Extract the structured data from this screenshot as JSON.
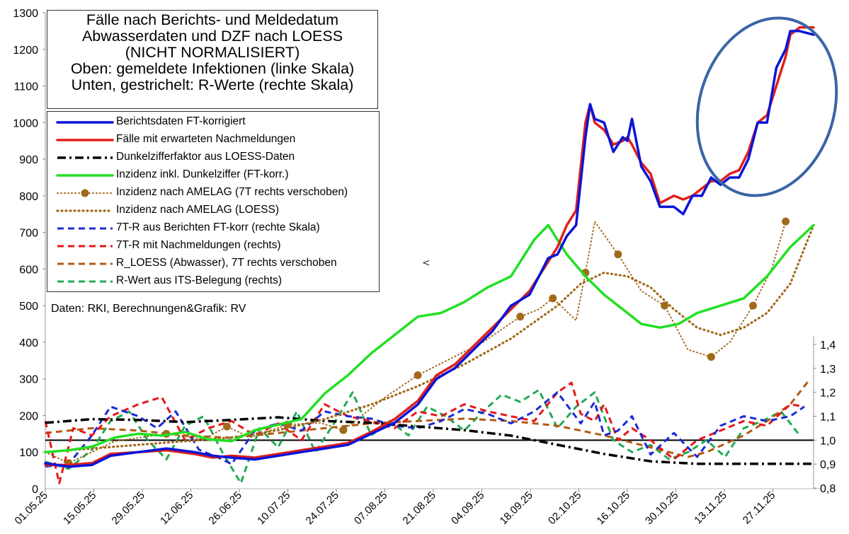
{
  "chart_data": {
    "type": "line",
    "title_lines": [
      "Fälle nach Berichts- und Meldedatum",
      "Abwasserdaten und DZF nach LOESS",
      "(NICHT NORMALISIERT)",
      "Oben: gemeldete Infektionen (linke Skala)",
      "Unten, gestrichelt: R-Werte (rechte Skala)"
    ],
    "source": "Daten: RKI, Berechnungen&Grafik: RV",
    "left_axis": {
      "ylim": [
        0,
        1300
      ],
      "ticks": [
        "0",
        "100",
        "200",
        "300",
        "400",
        "500",
        "600",
        "700",
        "800",
        "900",
        "1000",
        "1100",
        "1200",
        "1300"
      ]
    },
    "right_axis": {
      "ylim": [
        0.8,
        1.4
      ],
      "ticks": [
        "0,8",
        "0,9",
        "1,0",
        "1,1",
        "1,2",
        "1,3",
        "1,4"
      ]
    },
    "x_labels": [
      "01.05.25",
      "15.05.25",
      "29.05.25",
      "12.06.25",
      "26.06.25",
      "10.07.25",
      "24.07.25",
      "07.08.25",
      "21.08.25",
      "04.09.25",
      "18.09.25",
      "02.10.25",
      "16.10.25",
      "30.10.25",
      "13.11.25",
      "27.11.25"
    ],
    "reference_line": 1.0,
    "series": [
      {
        "name": "Berichtsdaten FT-korrigiert",
        "axis": "left",
        "color": "#0a14d8",
        "style": "solid",
        "x": [
          0,
          5,
          10,
          14,
          20,
          26,
          32,
          36,
          40,
          45,
          50,
          55,
          60,
          65,
          70,
          75,
          80,
          84,
          88,
          92,
          96,
          100,
          104,
          108,
          110,
          112,
          114,
          116,
          117,
          118,
          120,
          122,
          124,
          125,
          126,
          128,
          130,
          132,
          135,
          137,
          139,
          141,
          143,
          145,
          147,
          149,
          151,
          153,
          155,
          157,
          159,
          160,
          162,
          165
        ],
        "values": [
          70,
          60,
          65,
          90,
          100,
          110,
          100,
          90,
          85,
          80,
          90,
          100,
          110,
          120,
          150,
          180,
          230,
          300,
          330,
          380,
          430,
          500,
          530,
          630,
          640,
          690,
          720,
          960,
          1050,
          1010,
          1000,
          920,
          960,
          950,
          1010,
          880,
          840,
          770,
          770,
          750,
          800,
          800,
          850,
          830,
          850,
          850,
          900,
          1000,
          1000,
          1150,
          1200,
          1250,
          1250,
          1240
        ]
      },
      {
        "name": "Fälle mit erwarteten Nachmeldungen",
        "axis": "left",
        "color": "#e0201a",
        "style": "solid",
        "x": [
          0,
          5,
          10,
          14,
          20,
          26,
          32,
          36,
          40,
          45,
          50,
          55,
          60,
          65,
          70,
          75,
          80,
          84,
          88,
          92,
          96,
          100,
          104,
          108,
          110,
          112,
          114,
          116,
          117,
          118,
          120,
          122,
          124,
          125,
          126,
          128,
          130,
          132,
          135,
          137,
          139,
          141,
          143,
          145,
          147,
          149,
          151,
          153,
          155,
          157,
          159,
          160,
          162,
          165
        ],
        "values": [
          65,
          65,
          70,
          95,
          100,
          105,
          95,
          85,
          90,
          85,
          95,
          105,
          115,
          125,
          155,
          190,
          240,
          310,
          340,
          390,
          440,
          490,
          540,
          620,
          660,
          720,
          760,
          1000,
          1050,
          1000,
          980,
          940,
          950,
          960,
          940,
          890,
          860,
          780,
          800,
          790,
          800,
          820,
          840,
          840,
          860,
          870,
          920,
          1000,
          1020,
          1100,
          1180,
          1240,
          1260,
          1260
        ]
      },
      {
        "name": "Dunkelzifferfaktor aus LOESS-Daten",
        "axis": "left",
        "color": "#000000",
        "style": "dashdot",
        "x": [
          0,
          10,
          20,
          30,
          40,
          50,
          60,
          70,
          80,
          90,
          100,
          110,
          120,
          130,
          140,
          150,
          160,
          165
        ],
        "values": [
          180,
          190,
          188,
          182,
          188,
          195,
          185,
          180,
          170,
          160,
          145,
          120,
          95,
          75,
          68,
          68,
          68,
          68
        ]
      },
      {
        "name": "Inzidenz inkl. Dunkelziffer (FT-korr.)",
        "axis": "left",
        "color": "#22e022",
        "style": "solid",
        "x": [
          0,
          5,
          10,
          15,
          20,
          25,
          30,
          35,
          40,
          45,
          50,
          55,
          60,
          65,
          70,
          75,
          80,
          85,
          90,
          95,
          100,
          105,
          108,
          112,
          116,
          120,
          124,
          128,
          132,
          136,
          140,
          145,
          150,
          155,
          160,
          165
        ],
        "values": [
          100,
          105,
          115,
          140,
          150,
          145,
          155,
          135,
          130,
          160,
          175,
          190,
          260,
          310,
          370,
          420,
          470,
          480,
          510,
          550,
          580,
          680,
          720,
          640,
          580,
          530,
          490,
          450,
          440,
          450,
          480,
          500,
          520,
          580,
          660,
          720
        ]
      },
      {
        "name": "Inzidenz nach AMELAG (7T rechts verschoben)",
        "axis": "left",
        "color": "#a06a1a",
        "style": "dotted-markers",
        "x": [
          0,
          5,
          15,
          26,
          34,
          39,
          44,
          52,
          59,
          64,
          73,
          80,
          94,
          102,
          106,
          109,
          114,
          116,
          118,
          123,
          128,
          133,
          138,
          143,
          147,
          152,
          156,
          159
        ],
        "values": [
          100,
          70,
          130,
          150,
          135,
          170,
          140,
          175,
          180,
          160,
          250,
          310,
          400,
          470,
          490,
          520,
          460,
          590,
          730,
          640,
          540,
          500,
          380,
          360,
          400,
          500,
          600,
          730
        ]
      },
      {
        "name": "Inzidenz nach AMELAG (LOESS)",
        "axis": "left",
        "color": "#a06a1a",
        "style": "dotted",
        "x": [
          0,
          10,
          20,
          30,
          40,
          50,
          60,
          70,
          80,
          90,
          100,
          110,
          115,
          120,
          125,
          130,
          135,
          140,
          145,
          150,
          155,
          160,
          165
        ],
        "values": [
          100,
          110,
          120,
          130,
          140,
          160,
          190,
          230,
          280,
          340,
          410,
          500,
          560,
          590,
          580,
          550,
          490,
          440,
          420,
          440,
          480,
          560,
          720
        ]
      },
      {
        "name": "7T-R aus Berichten FT-korr (rechte Skala)",
        "axis": "right",
        "color": "#1a2ad8",
        "style": "dashed",
        "x": [
          0,
          5,
          10,
          14,
          20,
          24,
          28,
          33,
          38,
          40,
          45,
          50,
          55,
          60,
          65,
          70,
          75,
          80,
          85,
          90,
          95,
          100,
          105,
          110,
          115,
          118,
          120,
          123,
          126,
          130,
          135,
          140,
          145,
          150,
          155,
          160,
          163
        ],
        "values": [
          0.89,
          0.9,
          1.02,
          1.14,
          1.1,
          1.05,
          1.12,
          0.96,
          0.92,
          0.9,
          1.04,
          1.07,
          1.04,
          1.12,
          1.1,
          1.09,
          1.06,
          1.05,
          1.08,
          1.13,
          1.11,
          1.07,
          1.12,
          1.2,
          1.07,
          1.16,
          1.02,
          1.04,
          1.1,
          0.94,
          1.03,
          0.93,
          1.06,
          1.1,
          1.08,
          1.1,
          1.14
        ]
      },
      {
        "name": "7T-R mit Nachmeldungen (rechts)",
        "axis": "right",
        "color": "#e8161a",
        "style": "dashed",
        "x": [
          0,
          3,
          6,
          10,
          14,
          20,
          25,
          30,
          35,
          40,
          45,
          50,
          55,
          60,
          65,
          70,
          75,
          80,
          85,
          90,
          95,
          100,
          105,
          110,
          113,
          115,
          118,
          120,
          123,
          126,
          130,
          135,
          140,
          145,
          150,
          155,
          160,
          163
        ],
        "values": [
          1.08,
          0.82,
          1.05,
          1.02,
          1.1,
          1.15,
          1.18,
          1.0,
          1.05,
          1.08,
          1.02,
          1.07,
          1.0,
          1.15,
          1.1,
          1.08,
          1.05,
          1.12,
          1.1,
          1.15,
          1.12,
          1.1,
          1.08,
          1.2,
          1.24,
          1.11,
          1.08,
          1.15,
          1.0,
          1.05,
          1.0,
          0.92,
          1.0,
          1.04,
          1.08,
          1.06,
          1.15,
          1.14
        ]
      },
      {
        "name": "R_LOESS (Abwasser), 7T rechts verschoben",
        "axis": "right",
        "color": "#b35a14",
        "style": "dashed",
        "x": [
          0,
          10,
          20,
          30,
          40,
          50,
          60,
          70,
          80,
          90,
          100,
          110,
          120,
          130,
          138,
          142,
          150,
          155,
          160,
          164
        ],
        "values": [
          1.03,
          1.05,
          1.04,
          1.02,
          1.01,
          1.03,
          1.05,
          1.07,
          1.08,
          1.09,
          1.08,
          1.06,
          1.02,
          0.97,
          0.93,
          0.95,
          1.02,
          1.08,
          1.15,
          1.25
        ]
      },
      {
        "name": "R-Wert aus ITS-Belegung (rechts)",
        "axis": "right",
        "color": "#22aa55",
        "style": "dashed",
        "x": [
          0,
          5,
          10,
          14,
          18,
          22,
          26,
          30,
          34,
          38,
          42,
          46,
          50,
          54,
          58,
          62,
          66,
          70,
          74,
          78,
          82,
          86,
          90,
          94,
          98,
          102,
          106,
          110,
          114,
          118,
          122,
          126,
          130,
          134,
          138,
          142,
          146,
          150,
          154,
          158,
          162
        ],
        "values": [
          0.91,
          0.88,
          0.96,
          1.08,
          1.12,
          1.0,
          0.92,
          1.06,
          1.1,
          0.95,
          0.82,
          1.05,
          0.97,
          1.12,
          0.95,
          1.07,
          1.2,
          1.02,
          1.08,
          1.02,
          1.14,
          1.1,
          1.04,
          1.12,
          1.19,
          1.16,
          1.21,
          1.05,
          1.14,
          1.2,
          1.0,
          0.95,
          0.98,
          0.92,
          0.95,
          1.0,
          0.93,
          1.05,
          1.08,
          1.12,
          1.02
        ]
      }
    ]
  }
}
